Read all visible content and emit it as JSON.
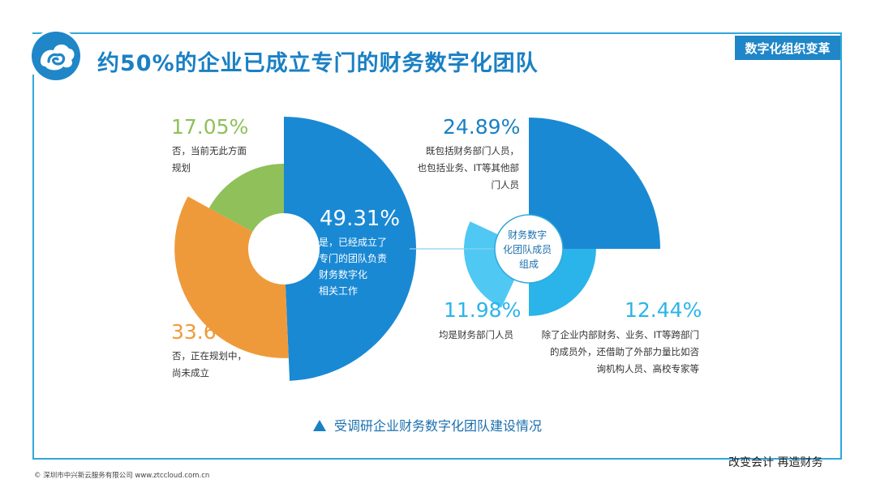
{
  "header": {
    "title": "约50%的企业已成立专门的财务数字化团队",
    "tag": "数字化组织变革"
  },
  "chart_data": [
    {
      "type": "pie",
      "style": "rose-donut",
      "slices": [
        {
          "value": 49.31,
          "label": "49.31%",
          "desc": "是，已经成立了专门的团队负责财务数字化相关工作",
          "color": "#1a89d4"
        },
        {
          "value": 33.64,
          "label": "33.64%",
          "desc": "否，正在规划中，尚未成立",
          "color": "#ef9a3a"
        },
        {
          "value": 17.05,
          "label": "17.05%",
          "desc": "否，当前无此方面规划",
          "color": "#8fc05a"
        }
      ]
    },
    {
      "type": "pie",
      "style": "rose",
      "center_label": "财务数字化团队成员组成",
      "slices": [
        {
          "value": 24.89,
          "label": "24.89%",
          "desc": "既包括财务部门人员，也包括业务、IT等其他部门人员",
          "color": "#1a89d4"
        },
        {
          "value": 12.44,
          "label": "12.44%",
          "desc": "除了企业内部财务、业务、IT等跨部门的成员外，还借助了外部力量比如咨询机构人员、高校专家等",
          "color": "#2bb4ea"
        },
        {
          "value": 11.98,
          "label": "11.98%",
          "desc": "均是财务部门人员",
          "color": "#4fc8f4"
        }
      ]
    }
  ],
  "labels": {
    "left_main": {
      "pct": "49.31%",
      "lines": [
        "是，已经成立了",
        "专门的团队负责",
        "财务数字化",
        "相关工作"
      ]
    },
    "left_orange": {
      "pct": "33.64%",
      "lines": [
        "否，正在规划中，",
        "尚未成立"
      ]
    },
    "left_green": {
      "pct": "17.05%",
      "lines": [
        "否，当前无此方面",
        "规划"
      ]
    },
    "right_big": {
      "pct": "24.89%",
      "lines": [
        "既包括财务部门人员，",
        "也包括业务、IT等其他部",
        "门人员"
      ]
    },
    "right_mid": {
      "pct": "12.44%",
      "lines": [
        "除了企业内部财务、业务、IT等跨部门",
        "的成员外，还借助了外部力量比如咨",
        "询机构人员、高校专家等"
      ]
    },
    "right_small": {
      "pct": "11.98%",
      "lines": [
        "均是财务部门人员"
      ]
    },
    "center": {
      "lines": [
        "财务数字",
        "化团队成员",
        "组成"
      ]
    }
  },
  "caption": "受调研企业财务数字化团队建设情况",
  "footer": {
    "slogan": "改变会计  再造财务",
    "copyright": "© 深圳市中兴新云服务有限公司   www.ztccloud.com.cn"
  },
  "colors": {
    "accent": "#1a80c4",
    "frame": "#2fa8dc"
  }
}
